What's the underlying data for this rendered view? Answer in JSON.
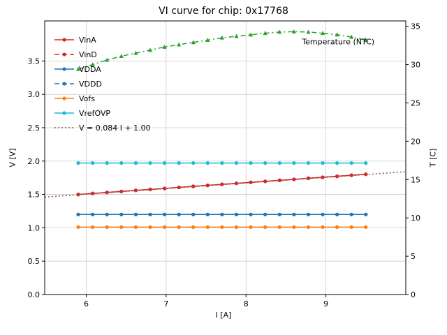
{
  "chart_data": {
    "type": "line",
    "title": "VI curve for chip: 0x17768",
    "xlabel": "I [A]",
    "ylabel_left": "V [V]",
    "ylabel_right": "T [C]",
    "xlim": [
      5.48,
      10.0
    ],
    "ylim_left": [
      0.0,
      4.1
    ],
    "ylim_right": [
      0,
      35.7
    ],
    "xticks": [
      6,
      7,
      8,
      9
    ],
    "yticks_left": [
      0.0,
      0.5,
      1.0,
      1.5,
      2.0,
      2.5,
      3.0,
      3.5
    ],
    "yticks_right": [
      0,
      5,
      10,
      15,
      20,
      25,
      30,
      35
    ],
    "grid": true,
    "legend_position": "upper left",
    "colors": {
      "grid": "#cccccc",
      "axis": "#000000",
      "background": "#ffffff"
    },
    "annotation": {
      "text": "Temperature (NTC)",
      "x": 8.7,
      "t": 33.0
    },
    "x": [
      5.9,
      6.08,
      6.26,
      6.44,
      6.62,
      6.8,
      6.98,
      7.16,
      7.34,
      7.52,
      7.7,
      7.88,
      8.06,
      8.24,
      8.42,
      8.6,
      8.78,
      8.96,
      9.14,
      9.32,
      9.5
    ],
    "series": [
      {
        "name": "VinA",
        "axis": "left",
        "color": "#d62728",
        "dash": "solid",
        "marker": "circle",
        "values": [
          1.5,
          1.515,
          1.53,
          1.545,
          1.56,
          1.575,
          1.59,
          1.605,
          1.621,
          1.636,
          1.651,
          1.666,
          1.681,
          1.696,
          1.711,
          1.726,
          1.742,
          1.757,
          1.772,
          1.787,
          1.802
        ]
      },
      {
        "name": "VinD",
        "axis": "left",
        "color": "#d62728",
        "dash": "dashed",
        "marker": "circle",
        "values": [
          1.5,
          1.515,
          1.53,
          1.545,
          1.56,
          1.575,
          1.59,
          1.605,
          1.621,
          1.636,
          1.651,
          1.666,
          1.681,
          1.696,
          1.711,
          1.726,
          1.742,
          1.757,
          1.772,
          1.787,
          1.802
        ]
      },
      {
        "name": "VDDA",
        "axis": "left",
        "color": "#1f77b4",
        "dash": "solid",
        "marker": "circle",
        "values": [
          1.2,
          1.2,
          1.2,
          1.2,
          1.2,
          1.2,
          1.2,
          1.2,
          1.2,
          1.2,
          1.2,
          1.2,
          1.2,
          1.2,
          1.2,
          1.2,
          1.2,
          1.2,
          1.2,
          1.2,
          1.2
        ]
      },
      {
        "name": "VDDD",
        "axis": "left",
        "color": "#1f77b4",
        "dash": "dashed",
        "marker": "circle",
        "values": [
          1.2,
          1.2,
          1.2,
          1.2,
          1.2,
          1.2,
          1.2,
          1.2,
          1.2,
          1.2,
          1.2,
          1.2,
          1.2,
          1.2,
          1.2,
          1.2,
          1.2,
          1.2,
          1.2,
          1.2,
          1.2
        ]
      },
      {
        "name": "Vofs",
        "axis": "left",
        "color": "#ff7f0e",
        "dash": "solid",
        "marker": "circle",
        "values": [
          1.01,
          1.01,
          1.01,
          1.01,
          1.01,
          1.01,
          1.01,
          1.01,
          1.01,
          1.01,
          1.01,
          1.01,
          1.01,
          1.01,
          1.01,
          1.01,
          1.01,
          1.01,
          1.01,
          1.01,
          1.01
        ]
      },
      {
        "name": "VrefOVP",
        "axis": "left",
        "color": "#17becf",
        "dash": "solid",
        "marker": "circle",
        "values": [
          1.97,
          1.97,
          1.97,
          1.97,
          1.97,
          1.97,
          1.97,
          1.97,
          1.97,
          1.97,
          1.97,
          1.97,
          1.97,
          1.97,
          1.97,
          1.97,
          1.97,
          1.97,
          1.97,
          1.97,
          1.97
        ]
      },
      {
        "name": "V = 0.084 I + 1.00",
        "axis": "left",
        "color": "#8c564b",
        "dash": "dotted",
        "marker": "none",
        "fit": {
          "slope": 0.084,
          "intercept": 1.0
        }
      },
      {
        "name": "Temperature (NTC)",
        "axis": "right",
        "color": "#2ca02c",
        "dash": "dashdot",
        "marker": "triangle",
        "legend": false,
        "values": [
          29.4,
          30.0,
          30.6,
          31.1,
          31.5,
          31.9,
          32.3,
          32.6,
          32.9,
          33.2,
          33.5,
          33.7,
          33.9,
          34.1,
          34.25,
          34.3,
          34.25,
          34.1,
          33.9,
          33.6,
          33.2
        ]
      }
    ]
  }
}
